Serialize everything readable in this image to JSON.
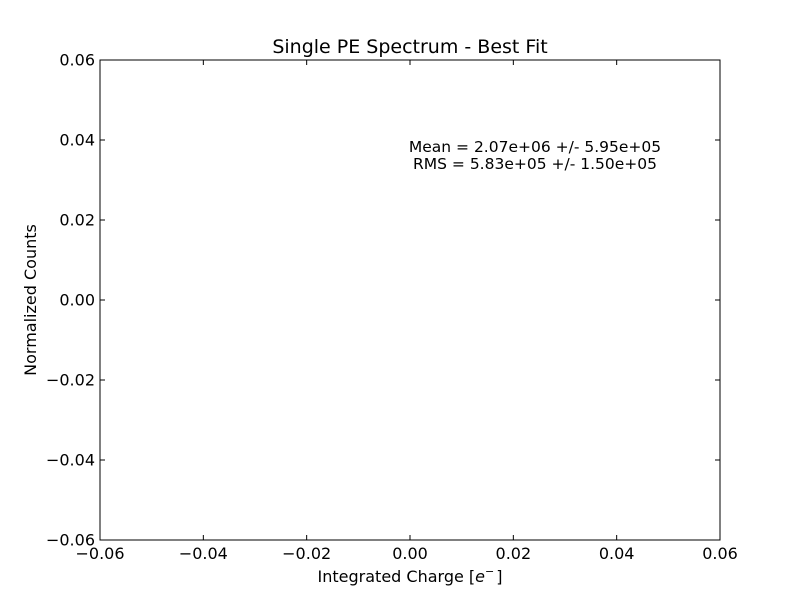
{
  "chart_data": {
    "type": "line",
    "title": "Single PE Spectrum - Best Fit",
    "xlabel": "Integrated Charge [",
    "xlabel_symbol": "e",
    "xlabel_superscript": "−",
    "xlabel_suffix": "]",
    "ylabel": "Normalized Counts",
    "xlim": [
      -0.06,
      0.06
    ],
    "ylim": [
      -0.06,
      0.06
    ],
    "xticks": [
      -0.06,
      -0.04,
      -0.02,
      0.0,
      0.02,
      0.04,
      0.06
    ],
    "yticks": [
      -0.06,
      -0.04,
      -0.02,
      0.0,
      0.02,
      0.04,
      0.06
    ],
    "xtick_labels": [
      "−0.06",
      "−0.04",
      "−0.02",
      "0.00",
      "0.02",
      "0.04",
      "0.06"
    ],
    "ytick_labels": [
      "−0.06",
      "−0.04",
      "−0.02",
      "0.00",
      "0.02",
      "0.04",
      "0.06"
    ],
    "series": [],
    "grid": false,
    "annotations": [
      "Mean = 2.07e+06 +/- 5.95e+05",
      "RMS = 5.83e+05 +/- 1.50e+05"
    ]
  }
}
